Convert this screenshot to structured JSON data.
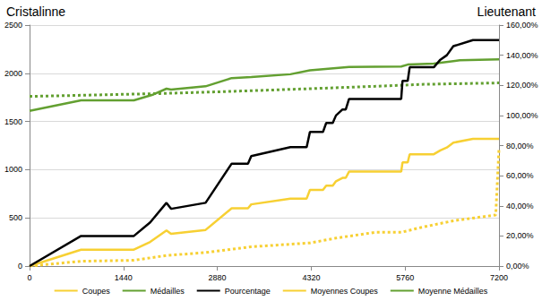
{
  "chart_data": {
    "type": "line",
    "ylabel": "Cristalinne",
    "y2label": "Lieutenant",
    "xlim": [
      0,
      7200
    ],
    "xticks": [
      0,
      1440,
      2880,
      4320,
      5760,
      7200
    ],
    "ylim": [
      0,
      2500
    ],
    "yticks": [
      0,
      500,
      1000,
      1500,
      2000,
      2500
    ],
    "y2lim": [
      0,
      160
    ],
    "y2ticks": [
      {
        "value": 0,
        "label": "0,00%"
      },
      {
        "value": 20,
        "label": "20,00%"
      },
      {
        "value": 40,
        "label": "40,00%"
      },
      {
        "value": 60,
        "label": "60,00%"
      },
      {
        "value": 80,
        "label": "80,00%"
      },
      {
        "value": 100,
        "label": "100,00%"
      },
      {
        "value": 120,
        "label": "120,00%"
      },
      {
        "value": 140,
        "label": "140,00%"
      },
      {
        "value": 160,
        "label": "160,00%"
      }
    ],
    "grid": true,
    "legend": "bottom",
    "series": [
      {
        "name": "Coupes",
        "color": "#f7d033",
        "line_style": "solid",
        "x": [
          0,
          790,
          1600,
          1850,
          2100,
          2170,
          2700,
          3100,
          3350,
          3400,
          4000,
          4250,
          4300,
          4500,
          4550,
          4650,
          4700,
          4800,
          4850,
          4900,
          5700,
          5720,
          5800,
          5830,
          6200,
          6300,
          6400,
          6500,
          6800,
          7200
        ],
        "values": [
          0,
          170,
          170,
          250,
          370,
          335,
          375,
          600,
          600,
          640,
          700,
          700,
          790,
          790,
          835,
          835,
          880,
          915,
          915,
          980,
          980,
          1075,
          1075,
          1160,
          1160,
          1200,
          1230,
          1280,
          1320,
          1320
        ]
      },
      {
        "name": "Médailles",
        "color": "#63a031",
        "line_style": "solid",
        "x": [
          0,
          790,
          1600,
          1900,
          2100,
          2170,
          2700,
          3100,
          3400,
          4000,
          4300,
          4900,
          5700,
          5800,
          6200,
          6600,
          7200
        ],
        "values": [
          1610,
          1720,
          1720,
          1780,
          1840,
          1830,
          1865,
          1950,
          1960,
          1990,
          2030,
          2065,
          2070,
          2090,
          2100,
          2135,
          2145
        ]
      },
      {
        "name": "Pourcentage",
        "color": "#000000",
        "line_style": "solid",
        "axis": "y2",
        "x": [
          0,
          790,
          1600,
          1850,
          2100,
          2170,
          2700,
          3100,
          3350,
          3400,
          4000,
          4250,
          4300,
          4500,
          4550,
          4650,
          4700,
          4800,
          4850,
          4900,
          5700,
          5720,
          5800,
          5830,
          6200,
          6300,
          6400,
          6500,
          6800,
          7200
        ],
        "values": [
          0,
          20,
          20,
          29,
          42,
          38,
          42,
          68,
          68,
          73,
          79,
          79,
          89,
          89,
          95,
          95,
          100,
          104,
          104,
          111,
          111,
          123,
          123,
          132,
          132,
          137,
          140,
          146,
          150,
          150
        ]
      },
      {
        "name": "Moyennes Coupes",
        "color": "#f7d033",
        "line_style": "dotted",
        "x": [
          0,
          790,
          1600,
          2100,
          2700,
          3400,
          4300,
          4700,
          5300,
          5700,
          6000,
          6500,
          7150,
          7200
        ],
        "values": [
          0,
          50,
          60,
          110,
          140,
          200,
          240,
          290,
          350,
          350,
          400,
          470,
          530,
          1220
        ]
      },
      {
        "name": "Moyenne Médailles",
        "color": "#63a031",
        "line_style": "dotted",
        "x": [
          0,
          1000,
          2000,
          3000,
          4300,
          5300,
          6000,
          7200
        ],
        "values": [
          1760,
          1775,
          1790,
          1810,
          1840,
          1865,
          1885,
          1900
        ]
      }
    ]
  }
}
